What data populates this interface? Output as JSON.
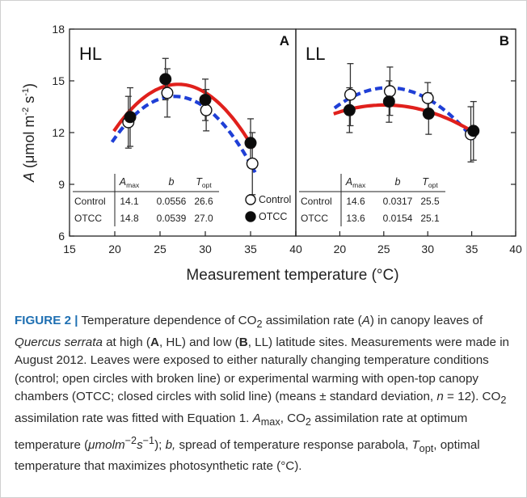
{
  "chart_data": {
    "type": "scatter",
    "ylabel_parts": [
      "A",
      " (μmol m",
      "-2",
      " s",
      "-1",
      ")"
    ],
    "xlabel": "Measurement temperature (°C)",
    "x_ticks": [
      15,
      20,
      25,
      30,
      35,
      40
    ],
    "y_ticks": [
      6,
      9,
      12,
      15,
      18
    ],
    "ylim": [
      6,
      18
    ],
    "legend": [
      {
        "symbol": "open-circle",
        "label": "Control"
      },
      {
        "symbol": "filled-circle",
        "label": "OTCC"
      }
    ],
    "table_headers": {
      "amax": "A",
      "amax_sub": "max",
      "b": "b",
      "topt": "T",
      "topt_sub": "opt"
    },
    "panels": [
      {
        "letter": "A",
        "site": "HL",
        "xlim": [
          15,
          40
        ],
        "legend_placement": "bottom-right",
        "series": [
          {
            "name": "Control",
            "style": "open-circle-dashed-blue",
            "x": [
              21.5,
              25.8,
              30.1,
              35.2
            ],
            "y": [
              12.6,
              14.3,
              13.3,
              10.2
            ],
            "err": [
              1.5,
              1.4,
              1.2,
              1.8
            ],
            "fit": {
              "amax": 14.1,
              "b": 0.0556,
              "topt": 26.6
            }
          },
          {
            "name": "OTCC",
            "style": "filled-circle-solid-red",
            "x": [
              21.7,
              25.6,
              30.0,
              35.0
            ],
            "y": [
              12.9,
              15.1,
              13.9,
              11.4
            ],
            "err": [
              1.7,
              1.2,
              1.2,
              1.4
            ],
            "fit": {
              "amax": 14.8,
              "b": 0.0539,
              "topt": 27.0
            }
          }
        ],
        "table": [
          {
            "name": "Control",
            "amax": "14.1",
            "b": "0.0556",
            "topt": "26.6"
          },
          {
            "name": "OTCC",
            "amax": "14.8",
            "b": "0.0539",
            "topt": "27.0"
          }
        ]
      },
      {
        "letter": "B",
        "site": "LL",
        "xlim": [
          15,
          40
        ],
        "series": [
          {
            "name": "Control",
            "style": "open-circle-dashed-blue",
            "x": [
              21.2,
              25.7,
              30.0,
              34.9
            ],
            "y": [
              14.2,
              14.4,
              14.0,
              11.9
            ],
            "err": [
              1.8,
              1.4,
              0.9,
              1.6
            ],
            "fit": {
              "amax": 14.6,
              "b": 0.0317,
              "topt": 25.5
            }
          },
          {
            "name": "OTCC",
            "style": "filled-circle-solid-red",
            "x": [
              21.1,
              25.6,
              30.1,
              35.2
            ],
            "y": [
              13.3,
              13.8,
              13.1,
              12.1
            ],
            "err": [
              1.3,
              1.2,
              1.2,
              1.7
            ],
            "fit": {
              "amax": 13.6,
              "b": 0.0154,
              "topt": 25.1
            }
          }
        ],
        "table": [
          {
            "name": "Control",
            "amax": "14.6",
            "b": "0.0317",
            "topt": "25.5"
          },
          {
            "name": "OTCC",
            "amax": "13.6",
            "b": "0.0154",
            "topt": "25.1"
          }
        ]
      }
    ]
  },
  "caption": {
    "figure_label": "FIGURE 2 |",
    "t01": " Temperature dependence of CO",
    "t01_sub": "2",
    "t02": " assimilation rate (",
    "t02_i": "A",
    "t03": ") in canopy leaves of ",
    "t03_i": "Quercus serrata",
    "t04": " at high (",
    "t04_b": "A",
    "t05": ", HL) and low (",
    "t05_b": "B",
    "t06": ", LL) latitude sites. Measurements were made in August 2012. Leaves were exposed to either naturally changing temperature conditions (control; open circles with broken line) or experimental warming with open-top canopy chambers (OTCC; closed circles with solid line) (means ± standard deviation, ",
    "t06_i": "n",
    "t07": " = 12). CO",
    "t07_sub": "2",
    "t08": " assimilation rate was fitted with Equation 1. ",
    "t08_i": "A",
    "t08_sub": "max",
    "t09": ", CO",
    "t09_sub": "2",
    "t10": " assimilation rate at optimum temperature (",
    "t10_i": "μmolm",
    "t10_sup1": "−2",
    "t10_i2": "s",
    "t10_sup2": "−1",
    "t11": "); ",
    "t11_i": "b,",
    "t12": " spread of temperature response parabola, ",
    "t12_i": "T",
    "t12_sub": "opt",
    "t13": ", optimal temperature that maximizes photosynthetic rate (°C)."
  }
}
